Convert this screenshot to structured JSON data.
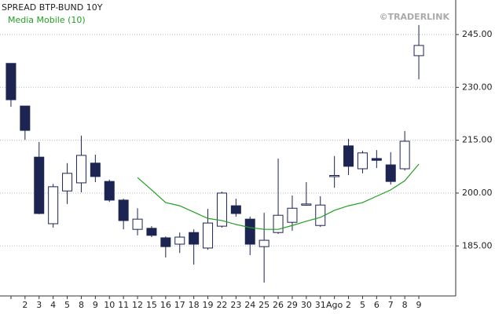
{
  "chart_data": {
    "type": "candlestick",
    "title": "SPREAD BTP-BUND 10Y",
    "watermark": "©TRADERLINK",
    "categories": [
      null,
      "2",
      "3",
      "4",
      "5",
      "8",
      "9",
      "10",
      "11",
      "12",
      "15",
      "16",
      "17",
      "18",
      "19",
      "22",
      "23",
      "24",
      "25",
      "26",
      "29",
      "30",
      "31",
      "Ago",
      "2",
      "5",
      "6",
      "7",
      "8",
      "9"
    ],
    "open": [
      236.8,
      224.7,
      210.2,
      191.3,
      200.6,
      202.9,
      208.5,
      203.3,
      198.0,
      189.7,
      190.0,
      187.3,
      185.5,
      188.8,
      184.4,
      190.6,
      196.4,
      192.6,
      184.8,
      188.8,
      191.7,
      196.8,
      190.8,
      204.8,
      213.4,
      206.9,
      209.8,
      208.0,
      206.9,
      239.0
    ],
    "high": [
      236.8,
      224.7,
      214.5,
      202.6,
      208.5,
      216.3,
      210.9,
      203.8,
      198.4,
      195.7,
      190.6,
      187.7,
      188.8,
      189.7,
      195.5,
      200.4,
      198.4,
      193.3,
      194.4,
      209.8,
      199.3,
      203.1,
      199.1,
      210.5,
      215.4,
      212.0,
      212.2,
      211.6,
      217.6,
      247.7
    ],
    "low": [
      224.5,
      215.1,
      194.0,
      190.2,
      196.9,
      200.2,
      203.1,
      197.5,
      189.7,
      188.0,
      187.5,
      181.7,
      183.0,
      179.7,
      183.9,
      190.2,
      193.3,
      182.4,
      174.6,
      188.4,
      189.3,
      196.4,
      190.4,
      201.5,
      205.1,
      205.6,
      207.1,
      202.4,
      206.4,
      232.3
    ],
    "close": [
      226.5,
      217.8,
      194.2,
      201.8,
      205.6,
      210.7,
      204.7,
      198.0,
      192.2,
      192.6,
      188.0,
      184.8,
      187.5,
      185.5,
      191.5,
      200.0,
      194.2,
      185.5,
      186.6,
      193.7,
      195.7,
      196.9,
      196.6,
      205.0,
      207.6,
      211.4,
      209.3,
      203.3,
      214.7,
      241.9
    ],
    "up_color": "#ffffff",
    "down_color": "#1c2452",
    "series": [
      {
        "name": "Media Mobile  (10)",
        "color": "#22a022",
        "values": [
          null,
          null,
          null,
          null,
          null,
          null,
          null,
          null,
          null,
          204.4,
          200.9,
          197.3,
          196.4,
          194.6,
          192.8,
          192.2,
          191.1,
          190.2,
          189.7,
          189.7,
          190.8,
          192.0,
          193.1,
          195.1,
          196.4,
          197.3,
          199.1,
          200.9,
          203.5,
          208.2
        ]
      }
    ],
    "ylim": [
      170.8,
      254.8
    ],
    "yticks": [
      {
        "value": 185,
        "label": "185.00"
      },
      {
        "value": 200,
        "label": "200.00"
      },
      {
        "value": 215,
        "label": "215.00"
      },
      {
        "value": 230,
        "label": "230.00"
      },
      {
        "value": 245,
        "label": "245.00"
      }
    ],
    "grid": true
  }
}
